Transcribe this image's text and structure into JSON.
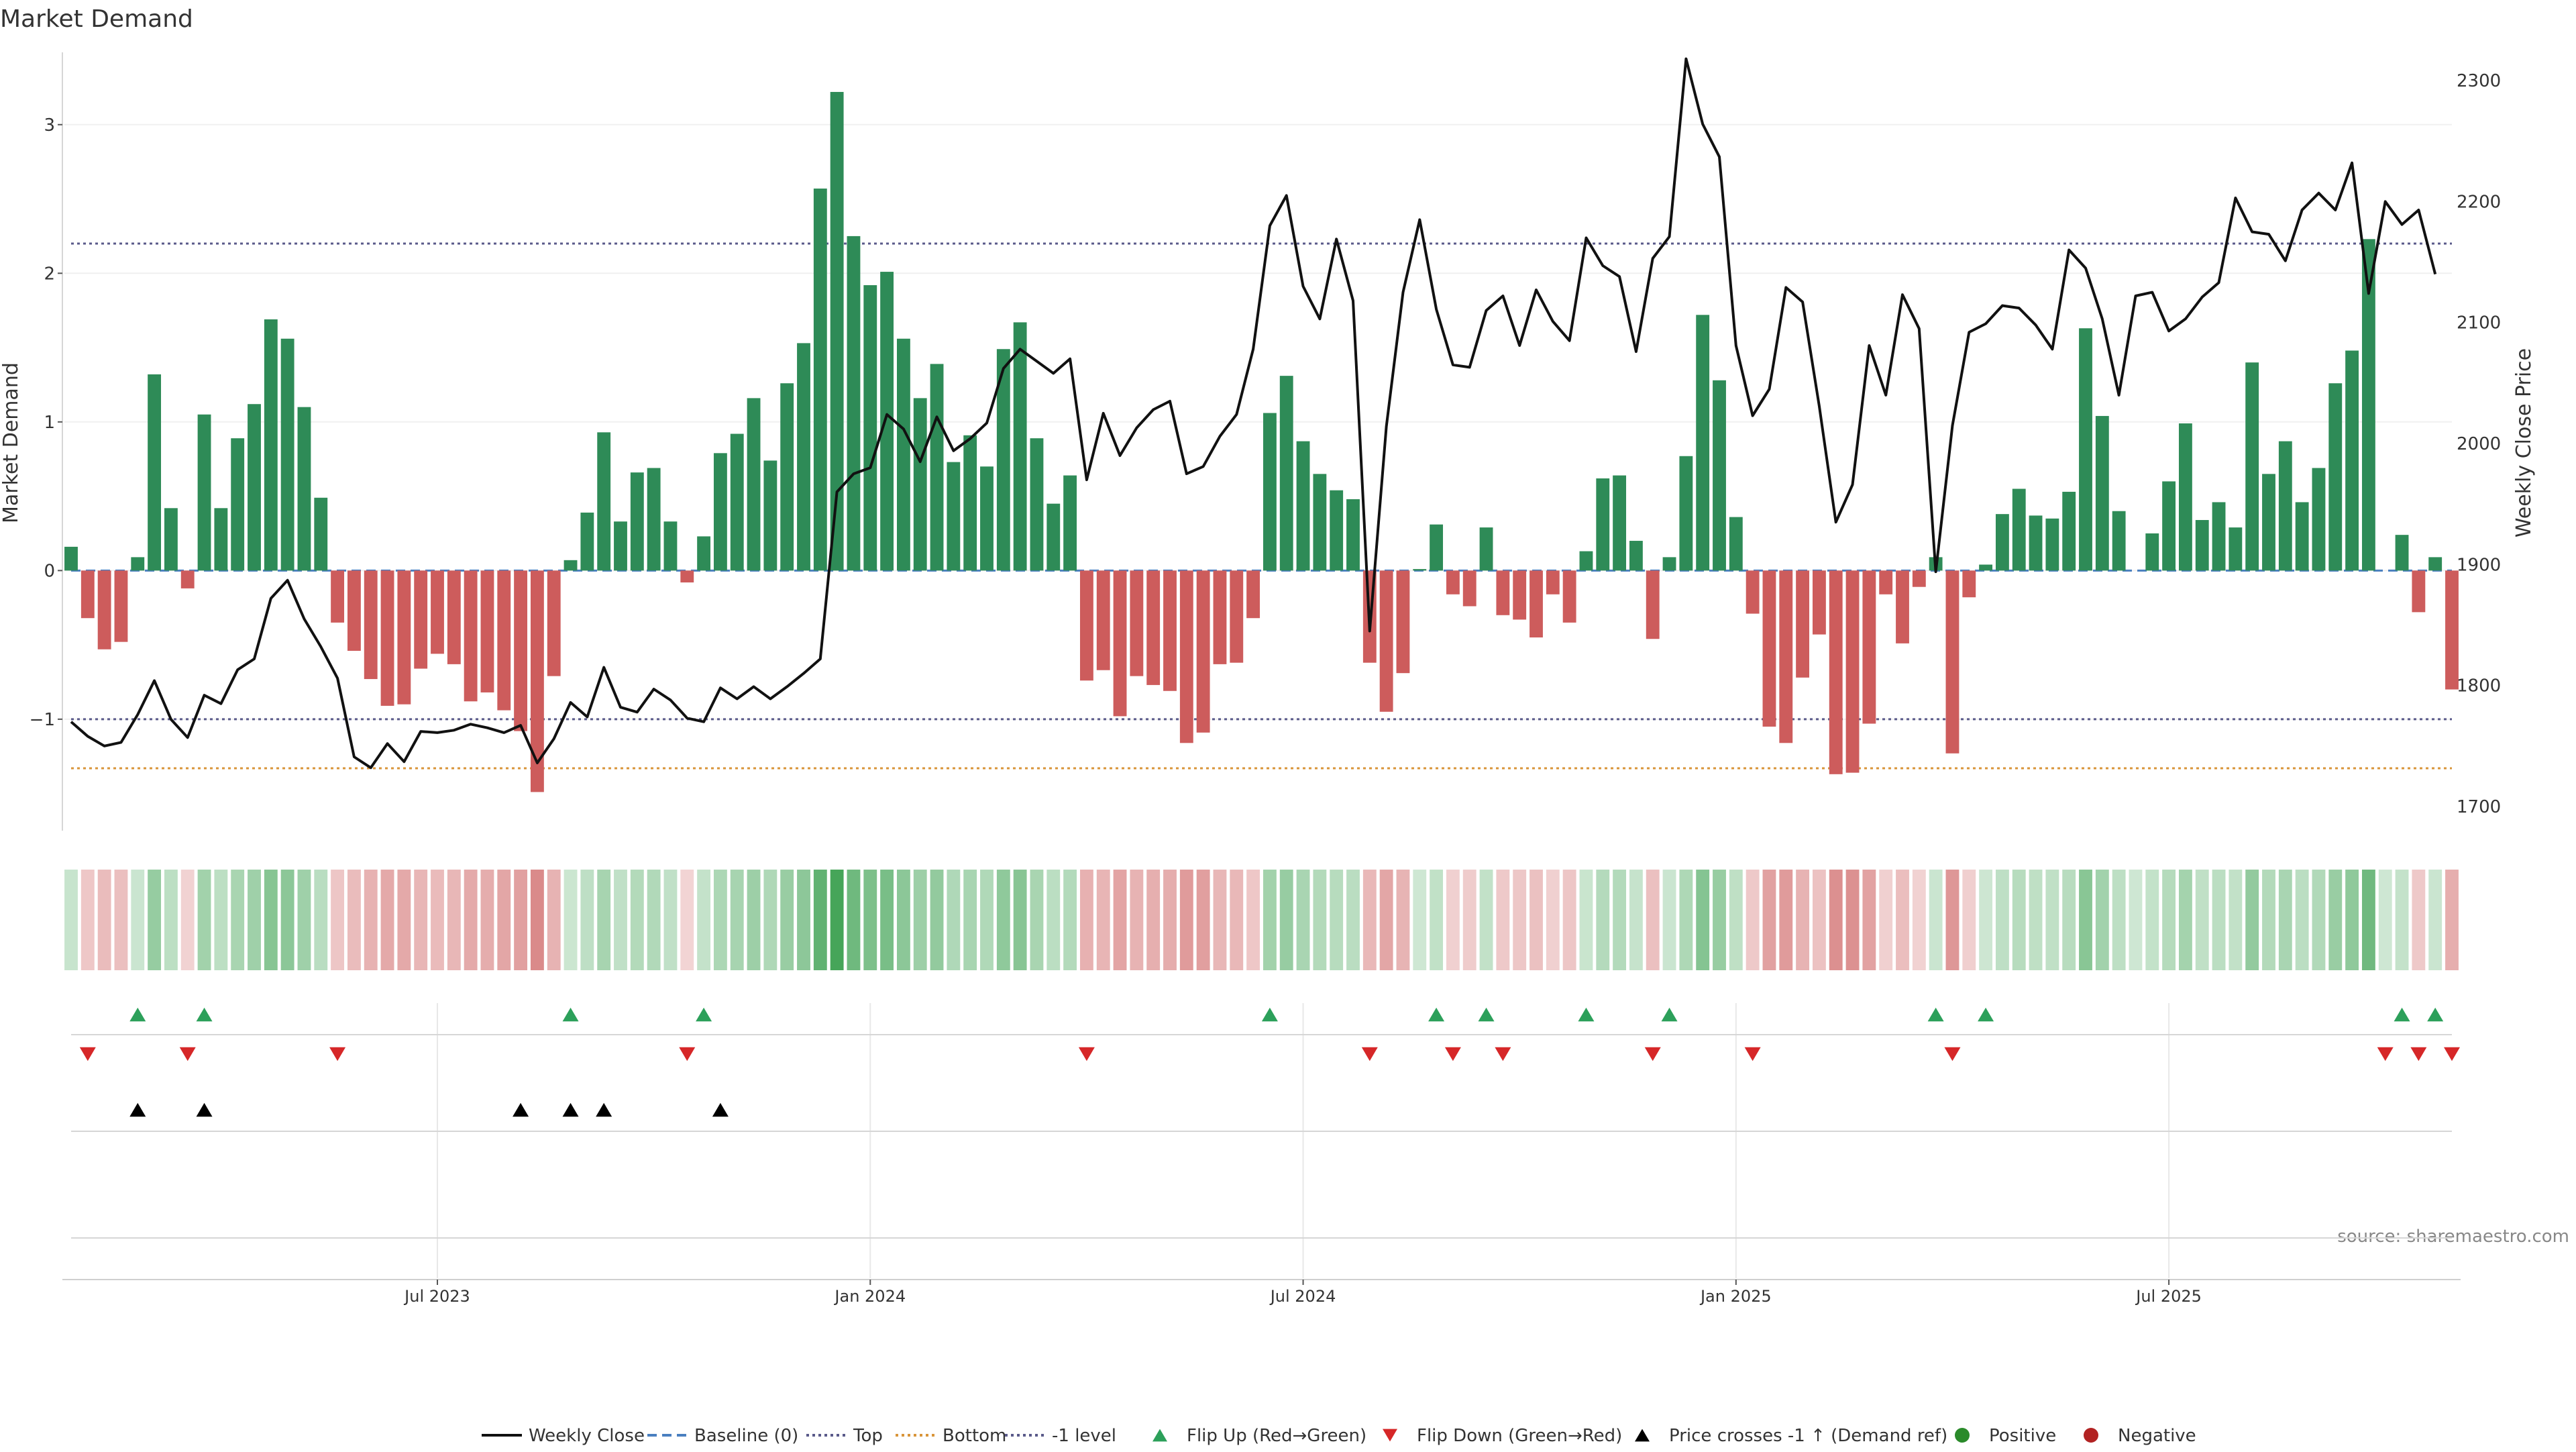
{
  "chart_data": {
    "type": "bar",
    "title": "Market Demand",
    "ylabel": "Market Demand",
    "y2label": "Weekly Close Price",
    "source": "source: sharemaestro.com",
    "ylim": [
      -1.75,
      3.5
    ],
    "y2lim": [
      1680,
      2325
    ],
    "yticks": [
      -1,
      0,
      1,
      2,
      3
    ],
    "y2ticks": [
      1700,
      1800,
      1900,
      2000,
      2100,
      2200,
      2300
    ],
    "xticks": [
      {
        "label": "Jul 2023",
        "index": 22
      },
      {
        "label": "Jan 2024",
        "index": 48
      },
      {
        "label": "Jul 2024",
        "index": 74
      },
      {
        "label": "Jan 2025",
        "index": 100
      },
      {
        "label": "Jul 2025",
        "index": 126
      }
    ],
    "reference_lines": {
      "baseline": 0,
      "top": 2.2,
      "minus_one": -1,
      "bottom": -1.33
    },
    "demand": [
      0.16,
      -0.32,
      -0.53,
      -0.48,
      0.09,
      1.32,
      0.42,
      -0.12,
      1.05,
      0.42,
      0.89,
      1.12,
      1.69,
      1.56,
      1.1,
      0.49,
      -0.35,
      -0.54,
      -0.73,
      -0.91,
      -0.9,
      -0.66,
      -0.56,
      -0.63,
      -0.88,
      -0.82,
      -0.94,
      -1.08,
      -1.49,
      -0.71,
      0.07,
      0.39,
      0.93,
      0.33,
      0.66,
      0.69,
      0.33,
      -0.08,
      0.23,
      0.79,
      0.92,
      1.16,
      0.74,
      1.26,
      1.53,
      2.57,
      3.22,
      2.25,
      1.92,
      2.01,
      1.56,
      1.16,
      1.39,
      0.73,
      0.91,
      0.7,
      1.49,
      1.67,
      0.89,
      0.45,
      0.64,
      -0.74,
      -0.67,
      -0.98,
      -0.71,
      -0.77,
      -0.81,
      -1.16,
      -1.09,
      -0.63,
      -0.62,
      -0.32,
      1.06,
      1.31,
      0.87,
      0.65,
      0.54,
      0.48,
      -0.62,
      -0.95,
      -0.69,
      0.01,
      0.31,
      -0.16,
      -0.24,
      0.29,
      -0.3,
      -0.33,
      -0.45,
      -0.16,
      -0.35,
      0.13,
      0.62,
      0.64,
      0.2,
      -0.46,
      0.09,
      0.77,
      1.72,
      1.28,
      0.36,
      -0.29,
      -1.05,
      -1.16,
      -0.72,
      -0.43,
      -1.37,
      -1.36,
      -1.03,
      -0.16,
      -0.49,
      -0.11,
      0.09,
      -1.23,
      -0.18,
      0.04,
      0.38,
      0.55,
      0.37,
      0.35,
      0.53,
      1.63,
      1.04,
      0.4,
      0.0,
      0.25,
      0.6,
      0.99,
      0.34,
      0.46,
      0.29,
      1.4,
      0.65,
      0.87,
      0.46,
      0.69,
      1.26,
      1.48,
      2.23,
      0.0,
      0.24,
      -0.28,
      0.09,
      -0.8
    ],
    "close": [
      1770,
      1758,
      1750,
      1753,
      1776,
      1804,
      1772,
      1757,
      1792,
      1785,
      1813,
      1822,
      1872,
      1887,
      1855,
      1832,
      1806,
      1741,
      1732,
      1752,
      1737,
      1762,
      1761,
      1763,
      1768,
      1765,
      1761,
      1767,
      1736,
      1756,
      1786,
      1774,
      1815,
      1782,
      1778,
      1797,
      1788,
      1773,
      1770,
      1798,
      1789,
      1799,
      1789,
      1799,
      1810,
      1822,
      1960,
      1975,
      1980,
      2024,
      2012,
      1985,
      2022,
      1994,
      2004,
      2017,
      2062,
      2078,
      2068,
      2058,
      2070,
      1970,
      2025,
      1990,
      2013,
      2028,
      2035,
      1975,
      1981,
      2006,
      2024,
      2078,
      2180,
      2205,
      2130,
      2103,
      2169,
      2118,
      1845,
      2014,
      2125,
      2185,
      2111,
      2065,
      2063,
      2110,
      2122,
      2081,
      2127,
      2101,
      2085,
      2170,
      2147,
      2138,
      2076,
      2153,
      2171,
      2318,
      2264,
      2237,
      2081,
      2023,
      2045,
      2129,
      2117,
      2031,
      1935,
      1966,
      2081,
      2040,
      2123,
      2095,
      1894,
      2015,
      2092,
      2099,
      2114,
      2112,
      2098,
      2078,
      2160,
      2145,
      2103,
      2040,
      2122,
      2125,
      2093,
      2103,
      2121,
      2133,
      2203,
      2175,
      2173,
      2151,
      2193,
      2207,
      2193,
      2232,
      2124,
      2200,
      2181,
      2193,
      2140
    ],
    "flip_up_indices": [
      4,
      8,
      30,
      38,
      72,
      82,
      85,
      91,
      96,
      112,
      115,
      140,
      142
    ],
    "flip_down_indices": [
      1,
      7,
      16,
      37,
      61,
      78,
      83,
      86,
      95,
      101,
      113,
      139,
      141,
      143
    ],
    "price_cross_indices": [
      4,
      8,
      27,
      30,
      32,
      39
    ],
    "legend": [
      {
        "label": "Weekly Close",
        "symbol": "solid-line",
        "color": "#111111"
      },
      {
        "label": "Baseline (0)",
        "symbol": "dashed-line",
        "color": "#4a7fc0"
      },
      {
        "label": "Top",
        "symbol": "dotted-line",
        "color": "#5a5a8a"
      },
      {
        "label": "Bottom",
        "symbol": "dotted-line",
        "color": "#d9953a"
      },
      {
        "label": "-1 level",
        "symbol": "dotted-line",
        "color": "#5a5a8a"
      },
      {
        "label": "Flip Up (Red→Green)",
        "symbol": "triangle-up",
        "color": "#2ca05a"
      },
      {
        "label": "Flip Down (Green→Red)",
        "symbol": "triangle-down",
        "color": "#d62728"
      },
      {
        "label": "Price crosses -1 ↑ (Demand ref)",
        "symbol": "triangle-up",
        "color": "#000000"
      },
      {
        "label": "Positive",
        "symbol": "circle",
        "color": "#2a8a2a"
      },
      {
        "label": "Negative",
        "symbol": "circle",
        "color": "#b22222"
      }
    ],
    "colors": {
      "positive_bar": "#2e8b57",
      "negative_bar": "#cd5c5c",
      "close_line": "#111111",
      "reference": "#5a5a8a",
      "bottom": "#d9953a",
      "baseline": "#4a7fc0"
    }
  }
}
